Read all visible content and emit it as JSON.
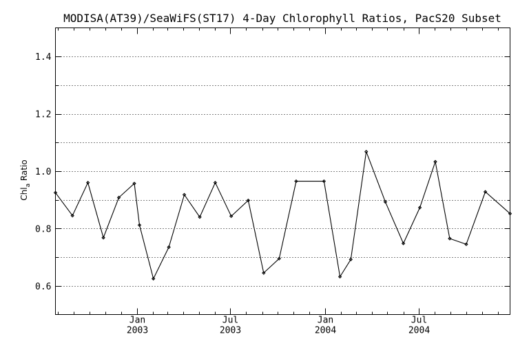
{
  "chart_data": {
    "type": "line",
    "title": "MODISA(AT39)/SeaWiFS(ST17) 4-Day Chlorophyll Ratios, PacS20 Subset",
    "xlabel": "",
    "ylabel": "Chl_a Ratio",
    "ylabel_main": "Chl",
    "ylabel_sub": "a",
    "ylabel_tail": " Ratio",
    "ylim": [
      0.5,
      1.5
    ],
    "y_ticks": [
      0.6,
      0.8,
      1.0,
      1.2,
      1.4
    ],
    "y_tick_labels": [
      "0.6",
      "0.8",
      "1.0",
      "1.2",
      "1.4"
    ],
    "y_gridlines": [
      0.6,
      0.7,
      0.8,
      0.9,
      1.0,
      1.1,
      1.2,
      1.3,
      1.4
    ],
    "xlim": [
      "2002-07-27",
      "2004-12-25"
    ],
    "x_ticks": [
      {
        "date": "2003-01-01",
        "month": "Jan",
        "year": "2003"
      },
      {
        "date": "2003-07-01",
        "month": "Jul",
        "year": "2003"
      },
      {
        "date": "2004-01-01",
        "month": "Jan",
        "year": "2004"
      },
      {
        "date": "2004-07-01",
        "month": "Jul",
        "year": "2004"
      }
    ],
    "grid": true,
    "series": [
      {
        "points": [
          {
            "x": "2002-07-27",
            "y": 0.925
          },
          {
            "x": "2002-08-29",
            "y": 0.845
          },
          {
            "x": "2002-09-28",
            "y": 0.96
          },
          {
            "x": "2002-10-28",
            "y": 0.768
          },
          {
            "x": "2002-11-27",
            "y": 0.908
          },
          {
            "x": "2002-12-27",
            "y": 0.957
          },
          {
            "x": "2003-01-06",
            "y": 0.812
          },
          {
            "x": "2003-02-02",
            "y": 0.625
          },
          {
            "x": "2003-03-04",
            "y": 0.735
          },
          {
            "x": "2003-04-03",
            "y": 0.918
          },
          {
            "x": "2003-05-03",
            "y": 0.84
          },
          {
            "x": "2003-06-02",
            "y": 0.96
          },
          {
            "x": "2003-07-03",
            "y": 0.843
          },
          {
            "x": "2003-08-05",
            "y": 0.898
          },
          {
            "x": "2003-09-04",
            "y": 0.645
          },
          {
            "x": "2003-10-04",
            "y": 0.695
          },
          {
            "x": "2003-11-06",
            "y": 0.965
          },
          {
            "x": "2003-12-30",
            "y": 0.965
          },
          {
            "x": "2004-01-30",
            "y": 0.632
          },
          {
            "x": "2004-02-20",
            "y": 0.692
          },
          {
            "x": "2004-03-21",
            "y": 1.068
          },
          {
            "x": "2004-04-27",
            "y": 0.893
          },
          {
            "x": "2004-06-01",
            "y": 0.748
          },
          {
            "x": "2004-07-03",
            "y": 0.873
          },
          {
            "x": "2004-08-02",
            "y": 1.033
          },
          {
            "x": "2004-08-30",
            "y": 0.765
          },
          {
            "x": "2004-10-01",
            "y": 0.745
          },
          {
            "x": "2004-11-07",
            "y": 0.928
          },
          {
            "x": "2004-12-25",
            "y": 0.852
          }
        ]
      }
    ]
  }
}
